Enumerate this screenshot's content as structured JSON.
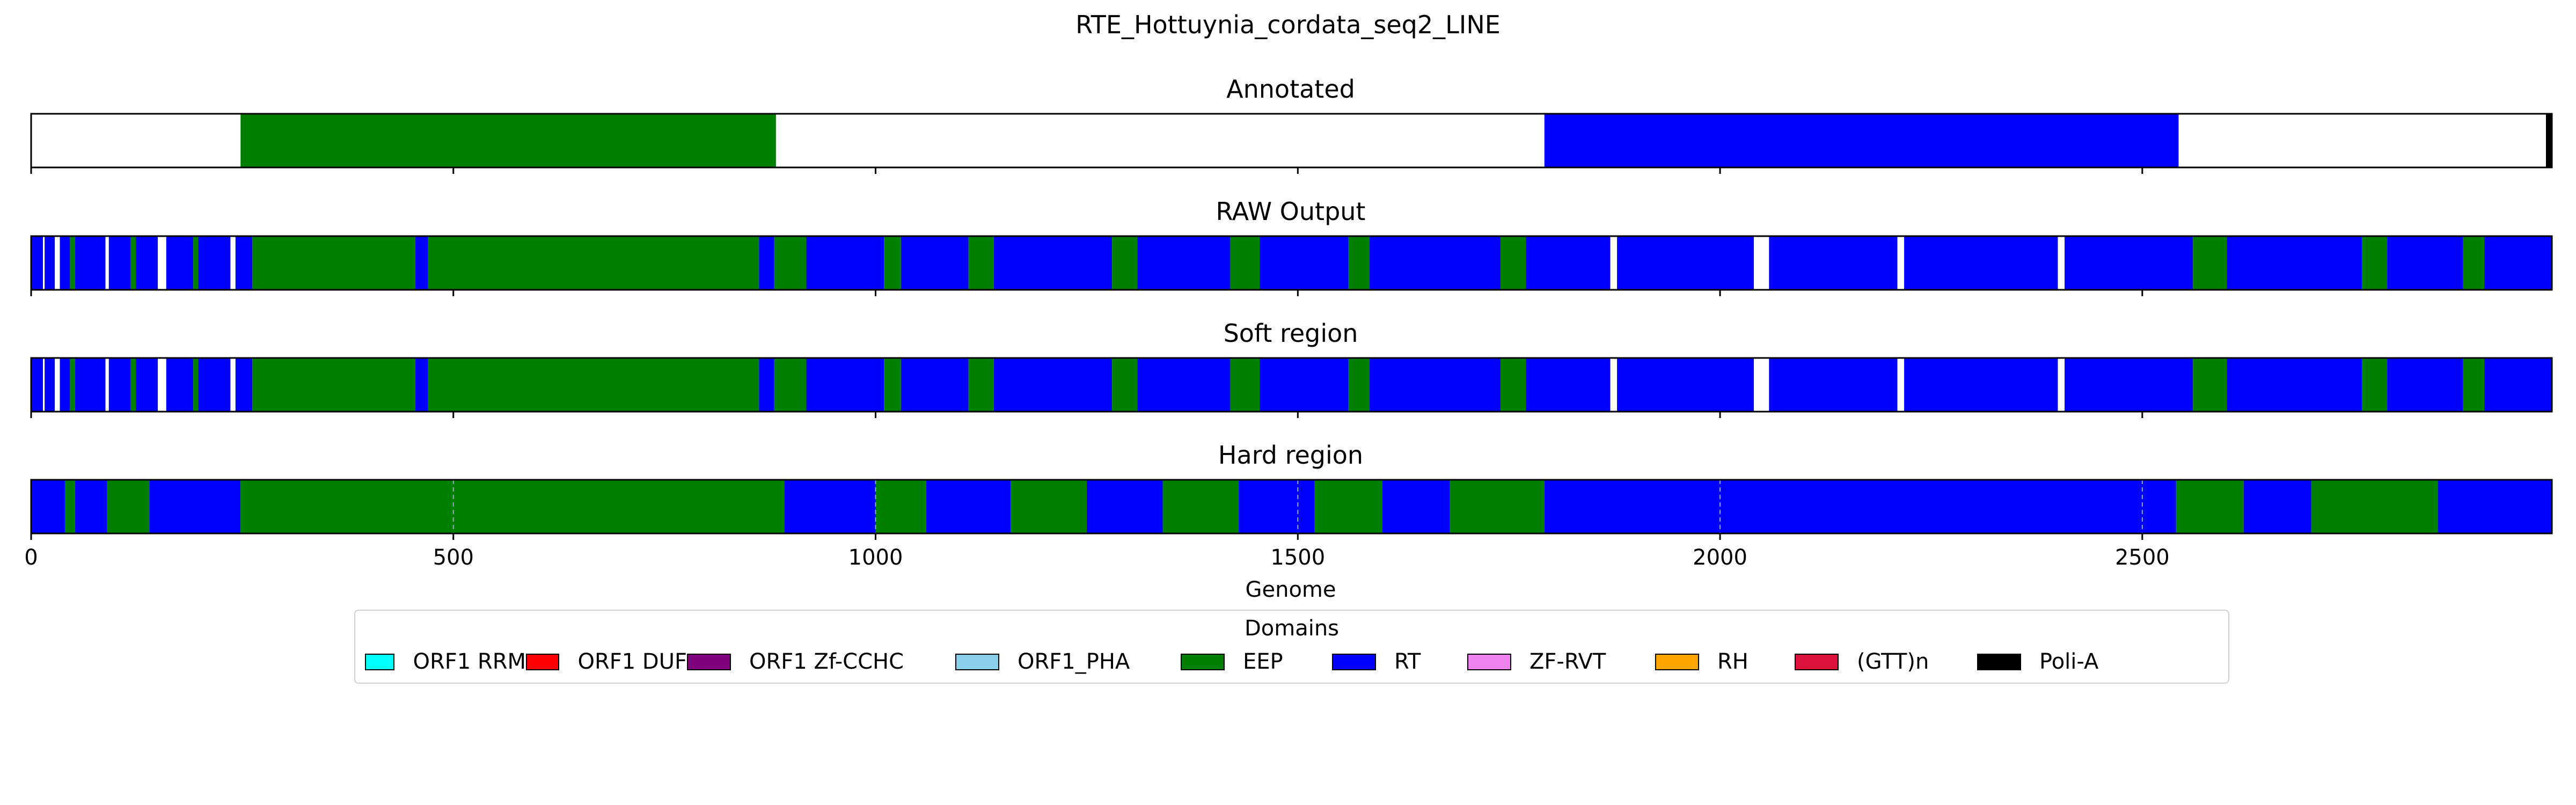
{
  "chart_data": {
    "type": "heatmap",
    "title": "RTE_Hottuynia_cordata_seq2_LINE",
    "xlabel": "Genome",
    "xlim": [
      0,
      2985
    ],
    "x_ticks": [
      0,
      500,
      1000,
      1500,
      2000,
      2500
    ],
    "colors": {
      "ORF1 RRM": "#00ffff",
      "ORF1 DUF": "#ff0000",
      "ORF1 Zf-CCHC": "#800080",
      "ORF1_PHA": "#87ceeb",
      "EEP": "#008000",
      "RT": "#0000ff",
      "ZF-RVT": "#ee82ee",
      "RH": "#ffa500",
      "(GTT)n": "#dc143c",
      "Poli-A": "#000000"
    },
    "tracks": [
      {
        "title": "Annotated",
        "segments": [
          {
            "start": 248,
            "end": 882,
            "domain": "EEP"
          },
          {
            "start": 1792,
            "end": 2543,
            "domain": "RT"
          },
          {
            "start": 2978,
            "end": 2985,
            "domain": "Poli-A"
          }
        ]
      },
      {
        "title": "RAW Output",
        "segments": [
          {
            "start": 0,
            "end": 14,
            "domain": "RT"
          },
          {
            "start": 16,
            "end": 28,
            "domain": "RT"
          },
          {
            "start": 34,
            "end": 46,
            "domain": "RT"
          },
          {
            "start": 46,
            "end": 52,
            "domain": "EEP"
          },
          {
            "start": 52,
            "end": 88,
            "domain": "RT"
          },
          {
            "start": 92,
            "end": 118,
            "domain": "RT"
          },
          {
            "start": 118,
            "end": 124,
            "domain": "EEP"
          },
          {
            "start": 124,
            "end": 150,
            "domain": "RT"
          },
          {
            "start": 160,
            "end": 192,
            "domain": "RT"
          },
          {
            "start": 192,
            "end": 198,
            "domain": "EEP"
          },
          {
            "start": 198,
            "end": 236,
            "domain": "RT"
          },
          {
            "start": 242,
            "end": 262,
            "domain": "RT"
          },
          {
            "start": 262,
            "end": 455,
            "domain": "EEP"
          },
          {
            "start": 455,
            "end": 470,
            "domain": "RT"
          },
          {
            "start": 470,
            "end": 862,
            "domain": "EEP"
          },
          {
            "start": 862,
            "end": 880,
            "domain": "RT"
          },
          {
            "start": 880,
            "end": 918,
            "domain": "EEP"
          },
          {
            "start": 918,
            "end": 1010,
            "domain": "RT"
          },
          {
            "start": 1010,
            "end": 1030,
            "domain": "EEP"
          },
          {
            "start": 1030,
            "end": 1110,
            "domain": "RT"
          },
          {
            "start": 1110,
            "end": 1140,
            "domain": "EEP"
          },
          {
            "start": 1140,
            "end": 1280,
            "domain": "RT"
          },
          {
            "start": 1280,
            "end": 1310,
            "domain": "EEP"
          },
          {
            "start": 1310,
            "end": 1420,
            "domain": "RT"
          },
          {
            "start": 1420,
            "end": 1455,
            "domain": "EEP"
          },
          {
            "start": 1455,
            "end": 1560,
            "domain": "RT"
          },
          {
            "start": 1560,
            "end": 1585,
            "domain": "EEP"
          },
          {
            "start": 1585,
            "end": 1740,
            "domain": "RT"
          },
          {
            "start": 1740,
            "end": 1770,
            "domain": "EEP"
          },
          {
            "start": 1770,
            "end": 1870,
            "domain": "RT"
          },
          {
            "start": 1878,
            "end": 2040,
            "domain": "RT"
          },
          {
            "start": 2058,
            "end": 2210,
            "domain": "RT"
          },
          {
            "start": 2218,
            "end": 2400,
            "domain": "RT"
          },
          {
            "start": 2408,
            "end": 2560,
            "domain": "RT"
          },
          {
            "start": 2560,
            "end": 2600,
            "domain": "EEP"
          },
          {
            "start": 2600,
            "end": 2760,
            "domain": "RT"
          },
          {
            "start": 2760,
            "end": 2790,
            "domain": "EEP"
          },
          {
            "start": 2790,
            "end": 2880,
            "domain": "RT"
          },
          {
            "start": 2880,
            "end": 2905,
            "domain": "EEP"
          },
          {
            "start": 2905,
            "end": 2985,
            "domain": "RT"
          }
        ]
      },
      {
        "title": "Soft region",
        "segments": [
          {
            "start": 0,
            "end": 14,
            "domain": "RT"
          },
          {
            "start": 16,
            "end": 28,
            "domain": "RT"
          },
          {
            "start": 34,
            "end": 46,
            "domain": "RT"
          },
          {
            "start": 46,
            "end": 52,
            "domain": "EEP"
          },
          {
            "start": 52,
            "end": 88,
            "domain": "RT"
          },
          {
            "start": 92,
            "end": 118,
            "domain": "RT"
          },
          {
            "start": 118,
            "end": 124,
            "domain": "EEP"
          },
          {
            "start": 124,
            "end": 150,
            "domain": "RT"
          },
          {
            "start": 160,
            "end": 192,
            "domain": "RT"
          },
          {
            "start": 192,
            "end": 198,
            "domain": "EEP"
          },
          {
            "start": 198,
            "end": 236,
            "domain": "RT"
          },
          {
            "start": 242,
            "end": 262,
            "domain": "RT"
          },
          {
            "start": 262,
            "end": 455,
            "domain": "EEP"
          },
          {
            "start": 455,
            "end": 470,
            "domain": "RT"
          },
          {
            "start": 470,
            "end": 862,
            "domain": "EEP"
          },
          {
            "start": 862,
            "end": 880,
            "domain": "RT"
          },
          {
            "start": 880,
            "end": 918,
            "domain": "EEP"
          },
          {
            "start": 918,
            "end": 1010,
            "domain": "RT"
          },
          {
            "start": 1010,
            "end": 1030,
            "domain": "EEP"
          },
          {
            "start": 1030,
            "end": 1110,
            "domain": "RT"
          },
          {
            "start": 1110,
            "end": 1140,
            "domain": "EEP"
          },
          {
            "start": 1140,
            "end": 1280,
            "domain": "RT"
          },
          {
            "start": 1280,
            "end": 1310,
            "domain": "EEP"
          },
          {
            "start": 1310,
            "end": 1420,
            "domain": "RT"
          },
          {
            "start": 1420,
            "end": 1455,
            "domain": "EEP"
          },
          {
            "start": 1455,
            "end": 1560,
            "domain": "RT"
          },
          {
            "start": 1560,
            "end": 1585,
            "domain": "EEP"
          },
          {
            "start": 1585,
            "end": 1740,
            "domain": "RT"
          },
          {
            "start": 1740,
            "end": 1770,
            "domain": "EEP"
          },
          {
            "start": 1770,
            "end": 1870,
            "domain": "RT"
          },
          {
            "start": 1878,
            "end": 2040,
            "domain": "RT"
          },
          {
            "start": 2058,
            "end": 2210,
            "domain": "RT"
          },
          {
            "start": 2218,
            "end": 2400,
            "domain": "RT"
          },
          {
            "start": 2408,
            "end": 2560,
            "domain": "RT"
          },
          {
            "start": 2560,
            "end": 2600,
            "domain": "EEP"
          },
          {
            "start": 2600,
            "end": 2760,
            "domain": "RT"
          },
          {
            "start": 2760,
            "end": 2790,
            "domain": "EEP"
          },
          {
            "start": 2790,
            "end": 2880,
            "domain": "RT"
          },
          {
            "start": 2880,
            "end": 2905,
            "domain": "EEP"
          },
          {
            "start": 2905,
            "end": 2985,
            "domain": "RT"
          }
        ]
      },
      {
        "title": "Hard region",
        "segments": [
          {
            "start": 0,
            "end": 40,
            "domain": "RT"
          },
          {
            "start": 40,
            "end": 52,
            "domain": "EEP"
          },
          {
            "start": 52,
            "end": 90,
            "domain": "RT"
          },
          {
            "start": 90,
            "end": 140,
            "domain": "EEP"
          },
          {
            "start": 140,
            "end": 248,
            "domain": "RT"
          },
          {
            "start": 248,
            "end": 892,
            "domain": "EEP"
          },
          {
            "start": 892,
            "end": 1000,
            "domain": "RT"
          },
          {
            "start": 1000,
            "end": 1060,
            "domain": "EEP"
          },
          {
            "start": 1060,
            "end": 1160,
            "domain": "RT"
          },
          {
            "start": 1160,
            "end": 1250,
            "domain": "EEP"
          },
          {
            "start": 1250,
            "end": 1340,
            "domain": "RT"
          },
          {
            "start": 1340,
            "end": 1430,
            "domain": "EEP"
          },
          {
            "start": 1430,
            "end": 1520,
            "domain": "RT"
          },
          {
            "start": 1520,
            "end": 1600,
            "domain": "EEP"
          },
          {
            "start": 1600,
            "end": 1680,
            "domain": "RT"
          },
          {
            "start": 1680,
            "end": 1792,
            "domain": "EEP"
          },
          {
            "start": 1792,
            "end": 2540,
            "domain": "RT"
          },
          {
            "start": 2540,
            "end": 2620,
            "domain": "EEP"
          },
          {
            "start": 2620,
            "end": 2700,
            "domain": "RT"
          },
          {
            "start": 2700,
            "end": 2850,
            "domain": "EEP"
          },
          {
            "start": 2850,
            "end": 2985,
            "domain": "RT"
          }
        ]
      }
    ]
  },
  "legend": {
    "title": "Domains",
    "items": [
      {
        "label": "ORF1 RRM",
        "color": "#00ffff"
      },
      {
        "label": "ORF1 DUF",
        "color": "#ff0000"
      },
      {
        "label": "ORF1 Zf-CCHC",
        "color": "#800080"
      },
      {
        "label": "ORF1_PHA",
        "color": "#87ceeb"
      },
      {
        "label": "EEP",
        "color": "#008000"
      },
      {
        "label": "RT",
        "color": "#0000ff"
      },
      {
        "label": "ZF-RVT",
        "color": "#ee82ee"
      },
      {
        "label": "RH",
        "color": "#ffa500"
      },
      {
        "label": "(GTT)n",
        "color": "#dc143c"
      },
      {
        "label": "Poli-A",
        "color": "#000000"
      }
    ]
  }
}
